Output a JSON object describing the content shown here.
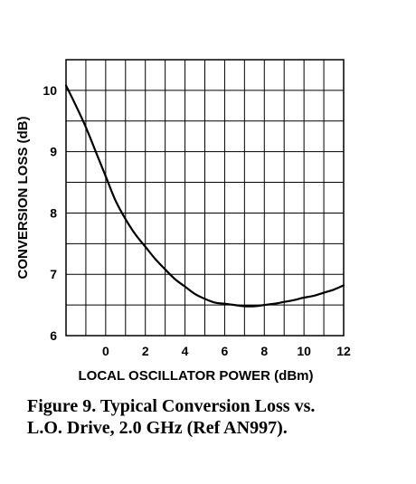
{
  "chart_data": {
    "type": "line",
    "xlabel": "LOCAL OSCILLATOR POWER (dBm)",
    "ylabel": "CONVERSION LOSS (dB)",
    "xlim": [
      -2,
      12
    ],
    "ylim": [
      6,
      10.5
    ],
    "x_ticks": [
      "0",
      "2",
      "4",
      "6",
      "8",
      "10",
      "12"
    ],
    "y_ticks": [
      "6",
      "7",
      "8",
      "9",
      "10"
    ],
    "grid": true,
    "series": [
      {
        "x": [
          -2,
          -1.5,
          -1,
          -0.5,
          0,
          0.5,
          1,
          1.5,
          2,
          2.5,
          3,
          3.5,
          4,
          4.5,
          5,
          5.5,
          6,
          6.5,
          7,
          7.5,
          8,
          8.5,
          9,
          9.5,
          10,
          10.5,
          11,
          11.5,
          12
        ],
        "y": [
          10.08,
          9.75,
          9.4,
          9.0,
          8.6,
          8.2,
          7.9,
          7.65,
          7.45,
          7.25,
          7.08,
          6.92,
          6.8,
          6.68,
          6.6,
          6.54,
          6.52,
          6.5,
          6.48,
          6.48,
          6.5,
          6.52,
          6.55,
          6.58,
          6.62,
          6.65,
          6.7,
          6.75,
          6.82
        ]
      }
    ]
  },
  "caption": {
    "line1": "Figure 9. Typical Conversion Loss vs.",
    "line2": "L.O. Drive, 2.0 GHz (Ref AN997)."
  }
}
